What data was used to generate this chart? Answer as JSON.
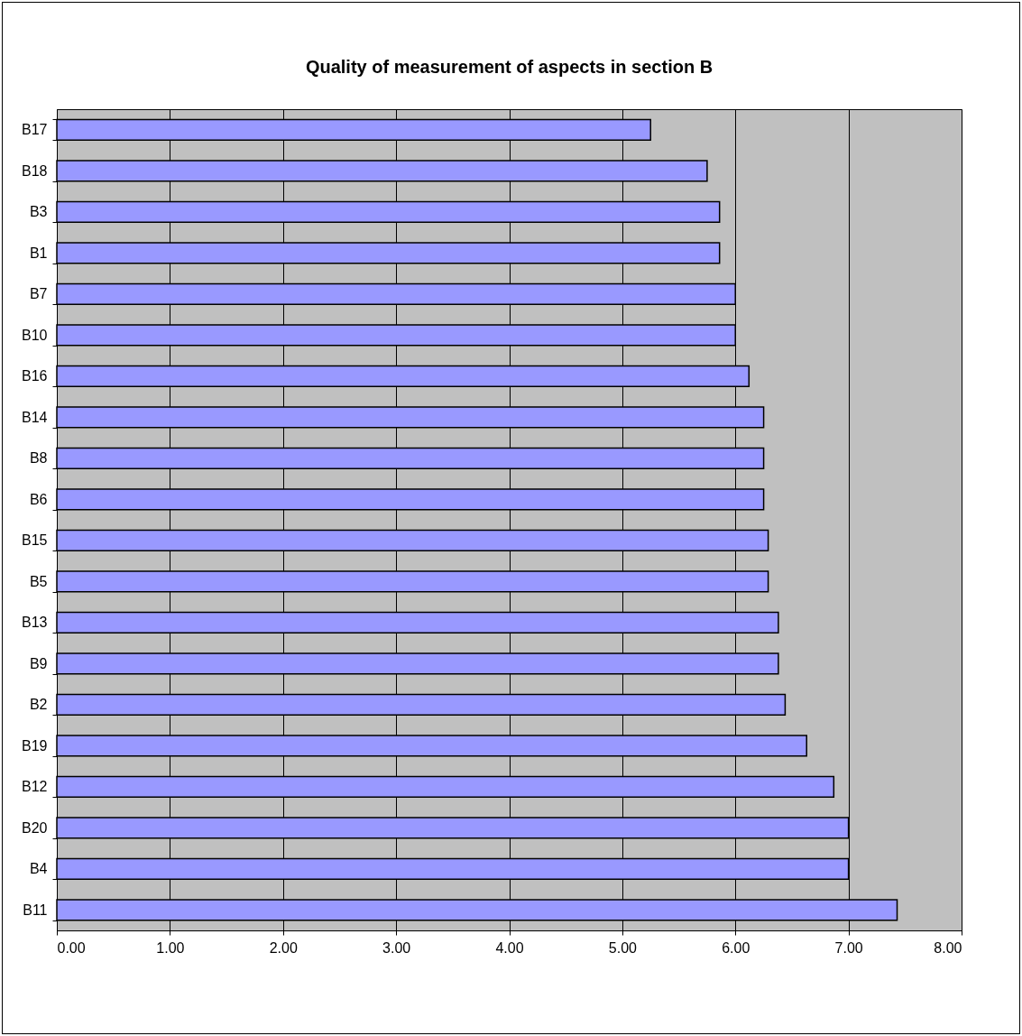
{
  "chart_data": {
    "type": "bar",
    "orientation": "horizontal",
    "title": "Quality of measurement of aspects in section B",
    "categories": [
      "B17",
      "B18",
      "B3",
      "B1",
      "B7",
      "B10",
      "B16",
      "B14",
      "B8",
      "B6",
      "B15",
      "B5",
      "B13",
      "B9",
      "B2",
      "B19",
      "B12",
      "B20",
      "B4",
      "B11"
    ],
    "values": [
      5.25,
      5.75,
      5.86,
      5.86,
      6.0,
      6.0,
      6.12,
      6.25,
      6.25,
      6.25,
      6.29,
      6.29,
      6.38,
      6.38,
      6.44,
      6.63,
      6.87,
      7.0,
      7.0,
      7.43
    ],
    "color": "#9999ff",
    "xlim": [
      0,
      8
    ],
    "xticks": [
      {
        "value": 0,
        "label": "0.00"
      },
      {
        "value": 1,
        "label": "1.00"
      },
      {
        "value": 2,
        "label": "2.00"
      },
      {
        "value": 3,
        "label": "3.00"
      },
      {
        "value": 4,
        "label": "4.00"
      },
      {
        "value": 5,
        "label": "5.00"
      },
      {
        "value": 6,
        "label": "6.00"
      },
      {
        "value": 7,
        "label": "7.00"
      },
      {
        "value": 8,
        "label": "8.00"
      }
    ],
    "grid": "x"
  }
}
